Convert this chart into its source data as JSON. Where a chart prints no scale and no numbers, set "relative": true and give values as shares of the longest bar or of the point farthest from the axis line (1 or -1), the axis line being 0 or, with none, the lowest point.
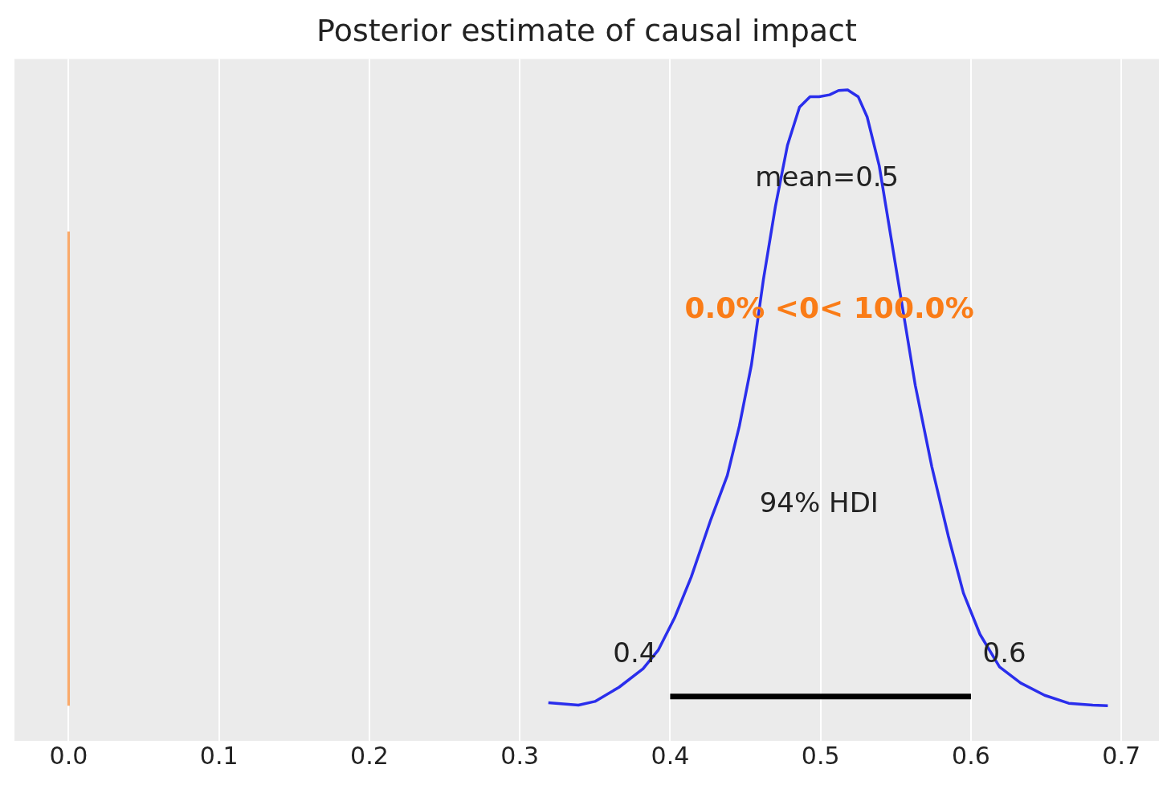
{
  "chart_data": {
    "type": "line",
    "title": "Posterior estimate of causal impact",
    "relative": true,
    "x": [
      0.319,
      0.339,
      0.35,
      0.366,
      0.382,
      0.392,
      0.403,
      0.414,
      0.427,
      0.438,
      0.446,
      0.454,
      0.462,
      0.47,
      0.478,
      0.486,
      0.493,
      0.499,
      0.506,
      0.512,
      0.518,
      0.525,
      0.531,
      0.539,
      0.547,
      0.555,
      0.563,
      0.574,
      0.585,
      0.595,
      0.606,
      0.619,
      0.633,
      0.649,
      0.665,
      0.681,
      0.691
    ],
    "series": [
      {
        "color": "#2a2eec",
        "values": [
          0.005,
          0.001,
          0.007,
          0.03,
          0.06,
          0.09,
          0.143,
          0.209,
          0.302,
          0.374,
          0.454,
          0.553,
          0.692,
          0.811,
          0.91,
          0.972,
          0.989,
          0.989,
          0.992,
          0.999,
          1,
          0.989,
          0.956,
          0.877,
          0.758,
          0.639,
          0.52,
          0.388,
          0.275,
          0.183,
          0.116,
          0.063,
          0.037,
          0.017,
          0.004,
          0.001,
          0
        ]
      },
      {
        "type": "line",
        "color": "#000000",
        "x": [
          0.4,
          0.6
        ],
        "values": [
          0.015,
          0.015
        ]
      }
    ],
    "xlim": [
      -0.036,
      0.725
    ],
    "xticks": [
      {
        "value": 0,
        "label": "0.0"
      },
      {
        "value": 0.1,
        "label": "0.1"
      },
      {
        "value": 0.2,
        "label": "0.2"
      },
      {
        "value": 0.3,
        "label": "0.3"
      },
      {
        "value": 0.4,
        "label": "0.4"
      },
      {
        "value": 0.5,
        "label": "0.5"
      },
      {
        "value": 0.6,
        "label": "0.6"
      },
      {
        "value": 0.7,
        "label": "0.7"
      }
    ],
    "grid": "x",
    "marker": "none",
    "line_style": "solid",
    "legend": false,
    "ref_lines": [
      {
        "axis": "x",
        "value": 0,
        "label": "0.0% <0< 100.0%",
        "color": "#fa7c17"
      }
    ],
    "annotations": [
      "mean=0.5",
      "94% HDI",
      "0.4",
      "0.6"
    ]
  }
}
